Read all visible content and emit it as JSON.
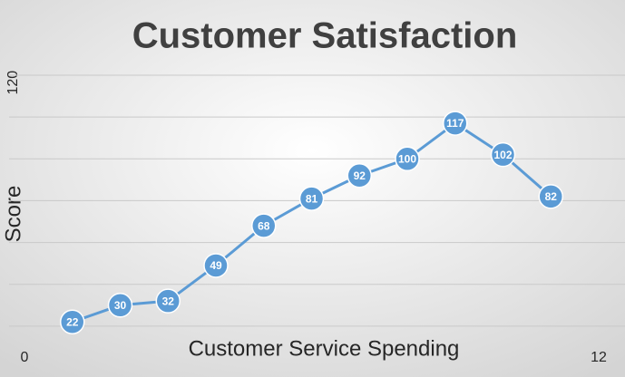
{
  "chart_data": {
    "type": "line",
    "title": "Customer Satisfaction",
    "x_label": "Customer Service Spending",
    "y_label": "Score",
    "x": [
      1,
      2,
      3,
      4,
      5,
      6,
      7,
      8,
      9,
      10,
      11
    ],
    "series": [
      {
        "name": "Score",
        "color": "#5b9bd5",
        "values": [
          22,
          30,
          32,
          49,
          68,
          81,
          92,
          100,
          117,
          102,
          82
        ]
      }
    ],
    "xlim": [
      0,
      12
    ],
    "xticks": [
      0,
      12
    ],
    "ylim": [
      0,
      140
    ],
    "yticks": [
      {
        "value": 20,
        "label": null
      },
      {
        "value": 40,
        "label": null
      },
      {
        "value": 60,
        "label": null
      },
      {
        "value": 80,
        "label": null
      },
      {
        "value": 100,
        "label": null
      },
      120,
      {
        "value": 140,
        "label": null
      }
    ],
    "grid": true,
    "data_labels": true
  }
}
